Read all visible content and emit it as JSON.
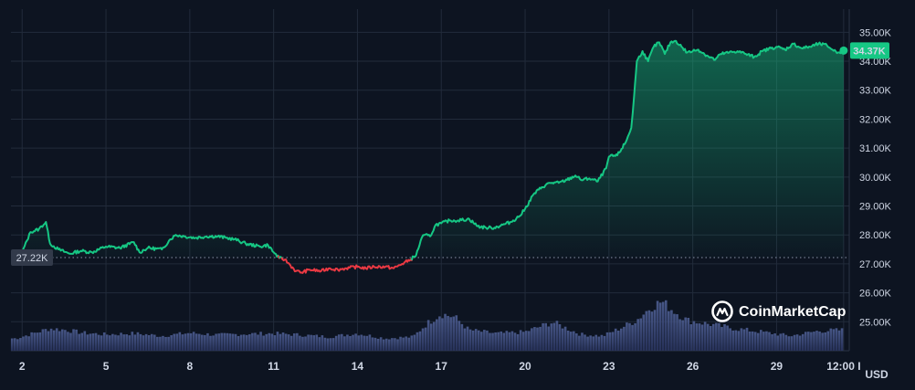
{
  "chart_data": {
    "type": "line",
    "title": "",
    "xlabel": "",
    "ylabel": "",
    "unit_label": "USD",
    "ylim": [
      24000,
      35800
    ],
    "y_ticks": [
      25000,
      26000,
      27000,
      28000,
      29000,
      30000,
      31000,
      32000,
      33000,
      34000,
      35000
    ],
    "y_tick_labels": [
      "25.00K",
      "26.00K",
      "27.00K",
      "28.00K",
      "29.00K",
      "30.00K",
      "31.00K",
      "32.00K",
      "33.00K",
      "34.00K",
      "35.00K"
    ],
    "x_range": [
      1.6,
      31.6
    ],
    "x_ticks": [
      2,
      5,
      8,
      11,
      14,
      17,
      20,
      23,
      26,
      29,
      31.4
    ],
    "x_tick_labels": [
      "2",
      "5",
      "8",
      "11",
      "14",
      "17",
      "20",
      "23",
      "26",
      "29",
      "12:00 I"
    ],
    "baseline": {
      "value": 27220,
      "label": "27.22K"
    },
    "current": {
      "value": 34370,
      "label": "34.37K"
    },
    "colors": {
      "up": "#16c784",
      "down": "#ea3943",
      "background": "#0d1421",
      "volume": "#3a4a7a",
      "grid": "#222b3b",
      "current_badge": "#16c784",
      "baseline_badge": "#323a4a"
    },
    "series": [
      {
        "x": [
          2.0,
          2.3,
          2.6,
          2.85,
          3.0,
          3.3,
          3.7,
          4.1,
          4.5,
          5.0,
          5.5,
          6.0,
          6.2,
          6.5,
          7.0,
          7.3,
          7.5,
          7.8,
          8.2,
          8.6,
          9.0,
          9.3,
          9.6,
          10.0,
          10.5,
          10.8,
          11.0,
          11.2,
          11.4,
          11.6,
          11.8,
          12.0,
          12.3,
          12.7,
          13.0,
          13.3,
          13.6,
          14.0,
          14.3,
          14.6,
          15.0,
          15.3,
          15.6,
          15.9,
          16.1,
          16.3,
          16.4,
          16.6,
          16.8,
          17.0,
          17.3,
          17.6,
          18.0,
          18.3,
          18.6,
          18.9,
          19.2,
          19.5,
          19.8,
          20.0,
          20.3,
          20.6,
          20.9,
          21.2,
          21.5,
          21.8,
          22.0,
          22.3,
          22.6,
          22.9,
          23.0,
          23.3,
          23.6,
          23.8,
          23.9,
          24.0,
          24.2,
          24.4,
          24.6,
          24.8,
          25.0,
          25.2,
          25.4,
          25.6,
          25.8,
          26.0,
          26.2,
          26.5,
          26.8,
          27.0,
          27.3,
          27.6,
          27.9,
          28.2,
          28.5,
          28.8,
          29.0,
          29.3,
          29.6,
          29.9,
          30.2,
          30.5,
          30.8,
          31.0,
          31.2,
          31.4
        ],
        "values": [
          27400,
          28100,
          28200,
          28450,
          27700,
          27500,
          27350,
          27450,
          27400,
          27600,
          27550,
          27750,
          27400,
          27550,
          27500,
          27850,
          28000,
          27950,
          27900,
          27950,
          27950,
          27900,
          27850,
          27700,
          27600,
          27650,
          27400,
          27200,
          27150,
          26950,
          26750,
          26700,
          26800,
          26750,
          26850,
          26800,
          26850,
          26900,
          26850,
          26900,
          26900,
          26850,
          27000,
          27150,
          27300,
          27900,
          28000,
          27950,
          28350,
          28400,
          28500,
          28500,
          28550,
          28300,
          28250,
          28250,
          28350,
          28450,
          28650,
          28900,
          29400,
          29650,
          29800,
          29800,
          29900,
          30050,
          29900,
          29950,
          29850,
          30300,
          30700,
          30750,
          31200,
          31700,
          32800,
          34000,
          34350,
          34000,
          34500,
          34650,
          34250,
          34650,
          34700,
          34500,
          34300,
          34350,
          34400,
          34200,
          34050,
          34250,
          34300,
          34350,
          34250,
          34150,
          34350,
          34450,
          34500,
          34400,
          34600,
          34450,
          34500,
          34600,
          34550,
          34400,
          34300,
          34370
        ]
      }
    ],
    "volume": {
      "x": [
        1.8,
        2.4,
        3.0,
        3.6,
        4.2,
        5.0,
        6.0,
        7.0,
        8.0,
        9.0,
        10.0,
        11.0,
        12.0,
        13.0,
        14.0,
        15.0,
        16.0,
        16.5,
        17.0,
        17.5,
        18.0,
        19.0,
        20.0,
        21.0,
        22.0,
        22.8,
        23.5,
        24.0,
        24.5,
        24.9,
        25.3,
        25.8,
        26.5,
        27.5,
        28.5,
        29.5,
        30.5,
        31.4
      ],
      "values": [
        0.25,
        0.35,
        0.45,
        0.42,
        0.36,
        0.33,
        0.35,
        0.3,
        0.36,
        0.32,
        0.34,
        0.35,
        0.32,
        0.28,
        0.35,
        0.25,
        0.28,
        0.55,
        0.75,
        0.68,
        0.42,
        0.35,
        0.38,
        0.58,
        0.33,
        0.3,
        0.48,
        0.62,
        0.88,
        1.0,
        0.82,
        0.62,
        0.55,
        0.45,
        0.38,
        0.3,
        0.4,
        0.42
      ]
    }
  },
  "watermark": {
    "text": "CoinMarketCap",
    "icon": "coinmarketcap-logo-icon"
  }
}
